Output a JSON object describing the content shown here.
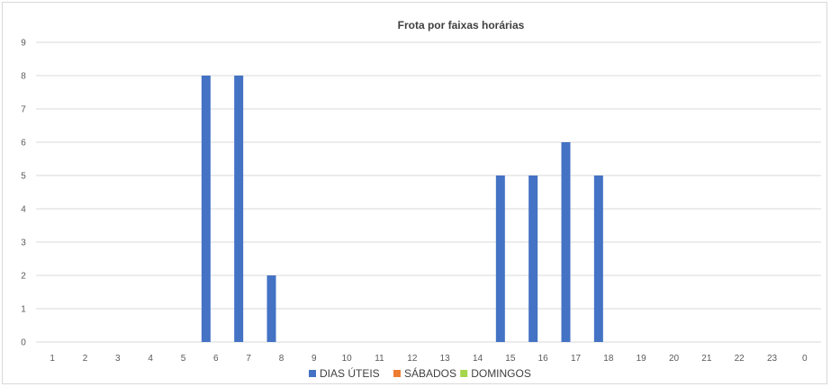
{
  "chart_data": {
    "type": "bar",
    "title": "Frota por faixas horárias",
    "xlabel": "",
    "ylabel": "",
    "ylim": [
      0,
      9
    ],
    "yticks": [
      "0",
      "1",
      "2",
      "3",
      "4",
      "5",
      "6",
      "7",
      "8",
      "9"
    ],
    "categories": [
      "1",
      "2",
      "3",
      "4",
      "5",
      "6",
      "7",
      "8",
      "9",
      "10",
      "11",
      "12",
      "13",
      "14",
      "15",
      "16",
      "17",
      "18",
      "19",
      "20",
      "21",
      "22",
      "23",
      "0"
    ],
    "series": [
      {
        "name": "DIAS ÚTEIS",
        "color": "#4472c4",
        "values": [
          0,
          0,
          0,
          0,
          0,
          8,
          8,
          2,
          0,
          0,
          0,
          0,
          0,
          0,
          5,
          5,
          6,
          5,
          0,
          0,
          0,
          0,
          0,
          0
        ]
      },
      {
        "name": "SÁBADOS",
        "color": "#ed7d31",
        "values": [
          0,
          0,
          0,
          0,
          0,
          0,
          0,
          0,
          0,
          0,
          0,
          0,
          0,
          0,
          0,
          0,
          0,
          0,
          0,
          0,
          0,
          0,
          0,
          0
        ]
      },
      {
        "name": "DOMINGOS",
        "color": "#a5d64b",
        "values": [
          0,
          0,
          0,
          0,
          0,
          0,
          0,
          0,
          0,
          0,
          0,
          0,
          0,
          0,
          0,
          0,
          0,
          0,
          0,
          0,
          0,
          0,
          0,
          0
        ]
      }
    ],
    "grid": true,
    "legend_position": "bottom"
  }
}
